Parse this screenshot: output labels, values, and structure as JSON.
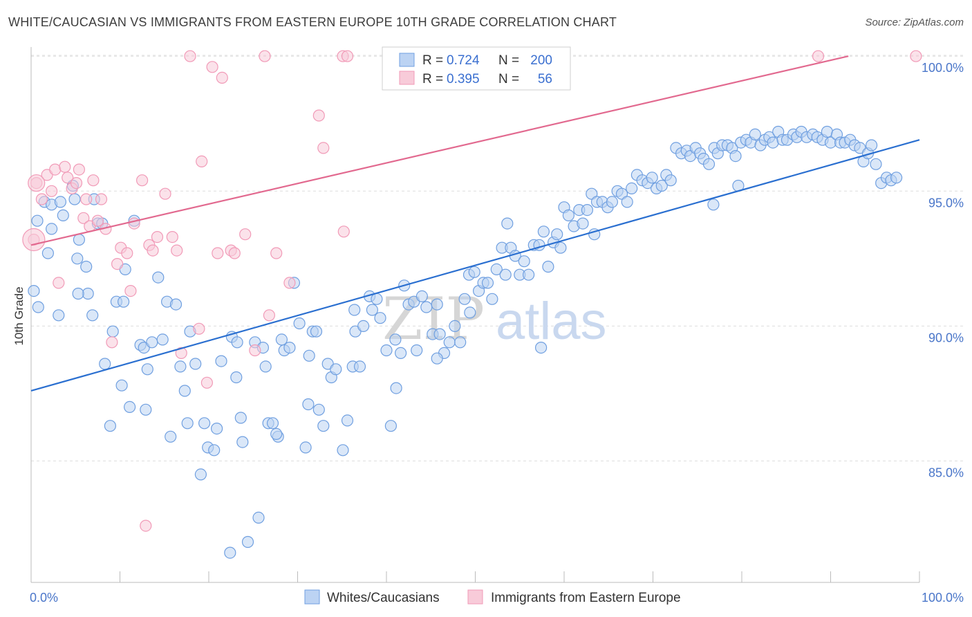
{
  "title": "WHITE/CAUCASIAN VS IMMIGRANTS FROM EASTERN EUROPE 10TH GRADE CORRELATION CHART",
  "source": "Source: ZipAtlas.com",
  "watermark": {
    "zip": "ZIP",
    "atlas": "atlas"
  },
  "colors": {
    "blue": "#6f9fe0",
    "blue_fill": "#bcd3f3",
    "blue_line": "#2a6fd0",
    "pink": "#f19ab7",
    "pink_fill": "#f8cbd9",
    "pink_line": "#e2698f",
    "axis_text": "#4a76c9",
    "grid": "#dddddd"
  },
  "legend": {
    "rows": [
      {
        "r_label": "R =",
        "r_value": "0.724",
        "n_label": "N =",
        "n_value": "200"
      },
      {
        "r_label": "R =",
        "r_value": "0.395",
        "n_label": "N =",
        "n_value": "56"
      }
    ]
  },
  "chart_data": {
    "type": "scatter",
    "title": "WHITE/CAUCASIAN VS IMMIGRANTS FROM EASTERN EUROPE 10TH GRADE CORRELATION CHART",
    "xlabel": "",
    "ylabel": "10th Grade",
    "xlim": [
      0,
      100
    ],
    "ylim": [
      80.5,
      100.8
    ],
    "x_tick_labels": [
      "0.0%",
      "100.0%"
    ],
    "y_ticks": [
      85.0,
      90.0,
      95.0,
      100.0
    ],
    "y_tick_labels": [
      "85.0%",
      "90.0%",
      "95.0%",
      "100.0%"
    ],
    "grid": true,
    "legend_position": "bottom",
    "series": [
      {
        "name": "Whites/Caucasians",
        "trendline": [
          [
            0,
            87.6
          ],
          [
            100,
            96.9
          ]
        ],
        "points": [
          [
            0.3,
            91.3
          ],
          [
            0.8,
            90.7
          ],
          [
            1.5,
            94.6
          ],
          [
            2.3,
            94.5
          ],
          [
            2.3,
            93.6
          ],
          [
            3.3,
            94.6
          ],
          [
            3.6,
            94.1
          ],
          [
            4.9,
            94.7
          ],
          [
            4.7,
            95.2
          ],
          [
            5.2,
            92.5
          ],
          [
            5.4,
            93.2
          ],
          [
            6.2,
            92.2
          ],
          [
            6.4,
            91.2
          ],
          [
            7.1,
            94.7
          ],
          [
            7.5,
            93.8
          ],
          [
            8.0,
            93.8
          ],
          [
            8.3,
            88.6
          ],
          [
            8.9,
            86.3
          ],
          [
            9.2,
            89.8
          ],
          [
            9.6,
            90.9
          ],
          [
            10.2,
            87.8
          ],
          [
            10.4,
            90.9
          ],
          [
            11.1,
            87.0
          ],
          [
            11.6,
            93.9
          ],
          [
            12.3,
            89.3
          ],
          [
            12.7,
            89.2
          ],
          [
            13.1,
            88.4
          ],
          [
            13.6,
            89.4
          ],
          [
            14.3,
            91.8
          ],
          [
            14.8,
            89.5
          ],
          [
            15.3,
            90.9
          ],
          [
            15.7,
            85.9
          ],
          [
            16.3,
            90.8
          ],
          [
            16.8,
            88.5
          ],
          [
            17.3,
            87.6
          ],
          [
            17.9,
            89.8
          ],
          [
            18.5,
            88.6
          ],
          [
            19.1,
            84.5
          ],
          [
            19.5,
            86.4
          ],
          [
            19.9,
            85.5
          ],
          [
            20.6,
            85.4
          ],
          [
            20.9,
            86.2
          ],
          [
            21.4,
            88.7
          ],
          [
            22.4,
            81.6
          ],
          [
            22.6,
            89.6
          ],
          [
            23.2,
            89.4
          ],
          [
            23.6,
            86.6
          ],
          [
            23.8,
            85.7
          ],
          [
            24.4,
            82.0
          ],
          [
            25.2,
            89.4
          ],
          [
            25.6,
            82.9
          ],
          [
            26.1,
            89.2
          ],
          [
            26.4,
            88.5
          ],
          [
            26.7,
            86.4
          ],
          [
            27.2,
            86.4
          ],
          [
            27.8,
            85.9
          ],
          [
            28.2,
            89.5
          ],
          [
            28.5,
            89.1
          ],
          [
            29.1,
            89.2
          ],
          [
            29.6,
            91.6
          ],
          [
            30.2,
            90.1
          ],
          [
            30.9,
            85.5
          ],
          [
            31.2,
            87.1
          ],
          [
            31.7,
            89.8
          ],
          [
            32.1,
            89.8
          ],
          [
            32.4,
            86.9
          ],
          [
            32.9,
            86.3
          ],
          [
            33.4,
            88.6
          ],
          [
            33.8,
            88.1
          ],
          [
            34.3,
            88.4
          ],
          [
            35.1,
            85.4
          ],
          [
            35.6,
            86.5
          ],
          [
            36.2,
            88.5
          ],
          [
            36.5,
            89.8
          ],
          [
            37.0,
            88.5
          ],
          [
            37.4,
            90.0
          ],
          [
            38.1,
            91.1
          ],
          [
            38.4,
            90.6
          ],
          [
            38.9,
            91.0
          ],
          [
            39.3,
            90.3
          ],
          [
            40.0,
            89.1
          ],
          [
            40.5,
            86.3
          ],
          [
            41.1,
            87.7
          ],
          [
            41.6,
            89.0
          ],
          [
            42.0,
            91.5
          ],
          [
            42.5,
            90.8
          ],
          [
            43.1,
            90.9
          ],
          [
            43.4,
            89.1
          ],
          [
            44.0,
            91.1
          ],
          [
            44.5,
            90.7
          ],
          [
            45.2,
            89.7
          ],
          [
            45.7,
            90.8
          ],
          [
            46.0,
            89.7
          ],
          [
            46.5,
            89.0
          ],
          [
            47.1,
            89.4
          ],
          [
            47.7,
            90.0
          ],
          [
            48.3,
            89.4
          ],
          [
            48.8,
            91.0
          ],
          [
            49.3,
            91.9
          ],
          [
            49.9,
            92.0
          ],
          [
            50.4,
            91.3
          ],
          [
            50.9,
            91.6
          ],
          [
            51.4,
            91.6
          ],
          [
            51.9,
            91.0
          ],
          [
            52.4,
            92.1
          ],
          [
            53.0,
            92.9
          ],
          [
            53.6,
            93.8
          ],
          [
            54.0,
            92.9
          ],
          [
            54.5,
            92.6
          ],
          [
            55.0,
            91.9
          ],
          [
            55.5,
            92.4
          ],
          [
            56.0,
            91.9
          ],
          [
            56.6,
            93.0
          ],
          [
            57.2,
            93.0
          ],
          [
            57.7,
            93.5
          ],
          [
            58.2,
            92.2
          ],
          [
            58.8,
            93.1
          ],
          [
            59.2,
            93.4
          ],
          [
            60.0,
            94.4
          ],
          [
            60.5,
            94.1
          ],
          [
            61.1,
            93.7
          ],
          [
            61.7,
            94.3
          ],
          [
            62.1,
            93.8
          ],
          [
            62.6,
            94.3
          ],
          [
            63.1,
            94.9
          ],
          [
            63.7,
            94.6
          ],
          [
            64.3,
            94.6
          ],
          [
            64.9,
            94.4
          ],
          [
            65.4,
            94.6
          ],
          [
            66.0,
            95.0
          ],
          [
            66.5,
            94.9
          ],
          [
            67.1,
            94.6
          ],
          [
            67.6,
            95.1
          ],
          [
            68.2,
            95.6
          ],
          [
            68.8,
            95.4
          ],
          [
            69.4,
            95.3
          ],
          [
            69.9,
            95.5
          ],
          [
            70.4,
            95.1
          ],
          [
            71.0,
            95.2
          ],
          [
            71.5,
            95.6
          ],
          [
            72.0,
            95.4
          ],
          [
            72.6,
            96.6
          ],
          [
            73.2,
            96.4
          ],
          [
            73.8,
            96.5
          ],
          [
            74.2,
            96.3
          ],
          [
            74.8,
            96.6
          ],
          [
            75.3,
            96.4
          ],
          [
            75.7,
            96.2
          ],
          [
            76.3,
            96.0
          ],
          [
            76.9,
            96.6
          ],
          [
            77.3,
            96.4
          ],
          [
            77.8,
            96.7
          ],
          [
            78.4,
            96.7
          ],
          [
            78.9,
            96.6
          ],
          [
            79.3,
            96.3
          ],
          [
            79.9,
            96.8
          ],
          [
            80.5,
            96.9
          ],
          [
            81.0,
            96.8
          ],
          [
            81.5,
            97.1
          ],
          [
            82.1,
            96.7
          ],
          [
            82.6,
            96.9
          ],
          [
            83.1,
            97.0
          ],
          [
            83.5,
            96.8
          ],
          [
            84.1,
            97.2
          ],
          [
            84.6,
            96.9
          ],
          [
            85.1,
            96.9
          ],
          [
            85.8,
            97.1
          ],
          [
            86.2,
            97.0
          ],
          [
            86.7,
            97.2
          ],
          [
            87.3,
            97.0
          ],
          [
            88.0,
            97.1
          ],
          [
            88.5,
            97.0
          ],
          [
            89.1,
            96.9
          ],
          [
            89.6,
            97.2
          ],
          [
            90.0,
            96.8
          ],
          [
            90.7,
            97.1
          ],
          [
            91.1,
            96.8
          ],
          [
            91.6,
            96.8
          ],
          [
            92.2,
            96.9
          ],
          [
            92.7,
            96.7
          ],
          [
            93.3,
            96.6
          ],
          [
            93.7,
            96.1
          ],
          [
            94.2,
            96.4
          ],
          [
            94.6,
            96.7
          ],
          [
            95.1,
            96.0
          ],
          [
            95.7,
            95.3
          ],
          [
            96.3,
            95.5
          ],
          [
            96.8,
            95.4
          ],
          [
            97.4,
            95.5
          ],
          [
            76.8,
            94.5
          ],
          [
            79.6,
            95.2
          ],
          [
            63.4,
            93.4
          ],
          [
            59.6,
            92.9
          ],
          [
            57.4,
            89.2
          ],
          [
            53.4,
            91.9
          ],
          [
            49.4,
            90.5
          ],
          [
            45.7,
            88.8
          ],
          [
            41.0,
            89.5
          ],
          [
            36.4,
            90.6
          ],
          [
            31.3,
            88.9
          ],
          [
            27.6,
            86.0
          ],
          [
            23.1,
            88.1
          ],
          [
            17.6,
            86.4
          ],
          [
            12.9,
            86.9
          ],
          [
            10.6,
            92.1
          ],
          [
            6.9,
            90.4
          ],
          [
            5.3,
            91.2
          ],
          [
            3.1,
            90.4
          ],
          [
            1.9,
            92.7
          ],
          [
            0.7,
            93.9
          ]
        ]
      },
      {
        "name": "Immigrants from Eastern Europe",
        "trendline": [
          [
            0,
            93.0
          ],
          [
            92,
            100.0
          ]
        ],
        "points": [
          [
            0.3,
            93.2
          ],
          [
            0.6,
            95.3
          ],
          [
            1.2,
            94.7
          ],
          [
            1.8,
            95.6
          ],
          [
            2.3,
            95.0
          ],
          [
            2.7,
            95.8
          ],
          [
            3.1,
            91.6
          ],
          [
            3.8,
            95.9
          ],
          [
            4.1,
            95.5
          ],
          [
            4.6,
            95.1
          ],
          [
            5.1,
            95.3
          ],
          [
            5.4,
            95.8
          ],
          [
            5.9,
            94.0
          ],
          [
            6.2,
            94.7
          ],
          [
            6.6,
            93.7
          ],
          [
            7.0,
            95.4
          ],
          [
            7.5,
            93.9
          ],
          [
            7.9,
            94.7
          ],
          [
            8.4,
            93.6
          ],
          [
            9.1,
            89.4
          ],
          [
            9.7,
            92.3
          ],
          [
            10.1,
            92.9
          ],
          [
            10.8,
            92.7
          ],
          [
            11.2,
            91.3
          ],
          [
            11.6,
            93.8
          ],
          [
            12.5,
            95.4
          ],
          [
            12.9,
            82.6
          ],
          [
            13.3,
            93.0
          ],
          [
            13.7,
            92.8
          ],
          [
            14.2,
            93.3
          ],
          [
            15.1,
            94.9
          ],
          [
            15.9,
            93.3
          ],
          [
            16.4,
            92.8
          ],
          [
            16.9,
            89.0
          ],
          [
            17.9,
            100.0
          ],
          [
            18.9,
            89.9
          ],
          [
            19.2,
            96.1
          ],
          [
            19.8,
            87.9
          ],
          [
            20.4,
            99.6
          ],
          [
            21.0,
            92.7
          ],
          [
            21.5,
            99.2
          ],
          [
            22.5,
            92.8
          ],
          [
            22.9,
            92.7
          ],
          [
            24.1,
            93.4
          ],
          [
            25.2,
            89.1
          ],
          [
            26.3,
            100.0
          ],
          [
            26.8,
            90.4
          ],
          [
            27.6,
            92.7
          ],
          [
            29.1,
            91.6
          ],
          [
            32.4,
            97.8
          ],
          [
            32.9,
            96.6
          ],
          [
            35.1,
            100.0
          ],
          [
            35.6,
            100.0
          ],
          [
            35.2,
            93.5
          ],
          [
            88.6,
            100.0
          ],
          [
            99.6,
            100.0
          ]
        ]
      }
    ]
  },
  "bottom_legend": {
    "items": [
      {
        "label": "Whites/Caucasians"
      },
      {
        "label": "Immigrants from Eastern Europe"
      }
    ]
  }
}
